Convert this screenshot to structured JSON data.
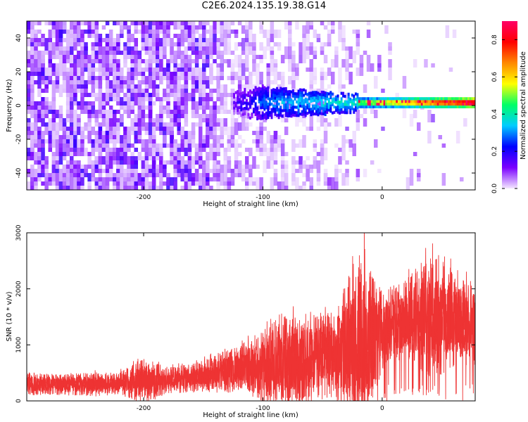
{
  "title": "C2E6.2024.135.19.38.G14",
  "chart_data": [
    {
      "type": "heatmap",
      "xlabel": "Height of straight line (km)",
      "ylabel": "Frequency (Hz)",
      "xlim": [
        -298,
        78
      ],
      "ylim": [
        -50,
        50
      ],
      "xticks": [
        -200,
        -100,
        0
      ],
      "yticks": [
        -40,
        -20,
        0,
        20,
        40
      ],
      "grid": false,
      "colorbar": {
        "label": "Normalized spectral amplitude",
        "range": [
          0,
          0.9
        ],
        "ticks": [
          0.0,
          0.2,
          0.4,
          0.6,
          0.8
        ],
        "tick_labels": [
          "0.0",
          "0.2",
          "0.4",
          "0.6",
          "0.8"
        ],
        "colormap": [
          "#f5e8ff",
          "#7a00ff",
          "#0000ff",
          "#00ccff",
          "#00ff66",
          "#ffff00",
          "#ff8800",
          "#ff0000",
          "#ff0066"
        ]
      },
      "features": [
        {
          "description": "noise",
          "x_range": [
            -298,
            -140
          ],
          "amplitude": 0.15
        },
        {
          "description": "carrier line",
          "x_range": [
            -120,
            78
          ],
          "y_center": 1,
          "amplitude_end": 0.8
        }
      ]
    },
    {
      "type": "line",
      "xlabel": "Height of straight line (km)",
      "ylabel": "SNR (10 * v/v)",
      "xlim": [
        -298,
        78
      ],
      "ylim": [
        0,
        3000
      ],
      "xticks": [
        -200,
        -100,
        0
      ],
      "yticks": [
        0,
        1000,
        2000,
        3000
      ],
      "grid": false,
      "color": "#ee3333",
      "series": [
        {
          "name": "",
          "x": [
            -298,
            -280,
            -260,
            -240,
            -220,
            -200,
            -180,
            -160,
            -140,
            -120,
            -100,
            -80,
            -60,
            -40,
            -20,
            0,
            20,
            40,
            60,
            78
          ],
          "y_mean": [
            300,
            300,
            290,
            300,
            320,
            350,
            370,
            400,
            480,
            570,
            620,
            700,
            750,
            850,
            1000,
            1250,
            1450,
            1520,
            1450,
            1400
          ],
          "y_max": [
            550,
            520,
            520,
            560,
            560,
            850,
            650,
            700,
            900,
            1050,
            1400,
            1700,
            1700,
            1750,
            3000,
            2100,
            2300,
            2850,
            2500,
            2300
          ]
        }
      ]
    }
  ]
}
